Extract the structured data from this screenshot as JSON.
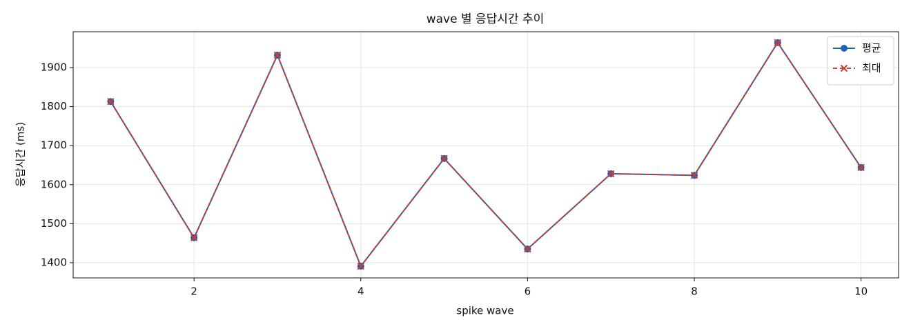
{
  "chart_data": {
    "type": "line",
    "title": "wave 별 응답시간 추이",
    "xlabel": "spike wave",
    "ylabel": "응답시간 (ms)",
    "x": [
      1,
      2,
      3,
      4,
      5,
      6,
      7,
      8,
      9,
      10
    ],
    "series": [
      {
        "name": "평균",
        "color": "#1f63b5",
        "marker": "circle",
        "linestyle": "solid",
        "values": [
          1813,
          1464,
          1932,
          1391,
          1667,
          1435,
          1628,
          1624,
          1964,
          1644
        ]
      },
      {
        "name": "최대",
        "color": "#d03a35",
        "marker": "x",
        "linestyle": "dashed",
        "values": [
          1813,
          1464,
          1932,
          1391,
          1667,
          1435,
          1628,
          1624,
          1964,
          1644
        ]
      }
    ],
    "xlim": [
      0.55,
      10.45
    ],
    "xticks": [
      2,
      4,
      6,
      8,
      10
    ],
    "ylim": [
      1361,
      1992
    ],
    "yticks": [
      1400,
      1500,
      1600,
      1700,
      1800,
      1900
    ],
    "grid": true,
    "legend": "upper right"
  }
}
